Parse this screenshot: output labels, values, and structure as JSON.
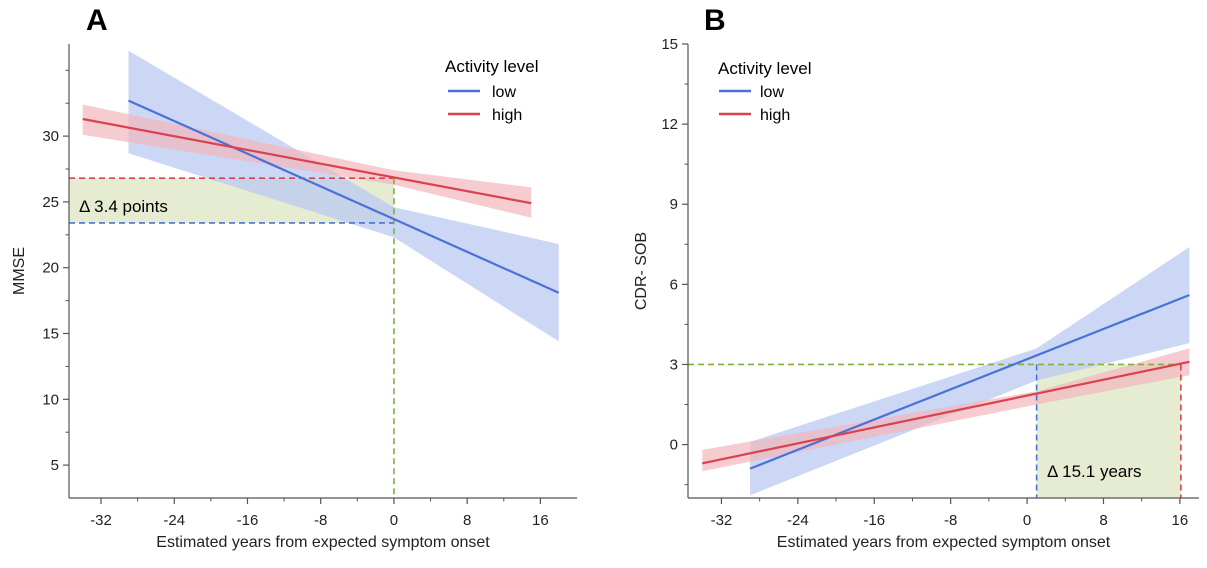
{
  "colors": {
    "low": "#4a72d6",
    "high": "#d9434f",
    "low_band": "#b8c7f2",
    "high_band": "#f2b6bc",
    "guide_green": "#7fb23a",
    "highlight_fill": "#e6ecd2"
  },
  "chart_data": [
    {
      "panel_label": "A",
      "type": "line",
      "xlabel": "Estimated years from expected symptom onset",
      "ylabel": "MMSE",
      "x_ticks": [
        -32,
        -24,
        -16,
        -8,
        0,
        8,
        16
      ],
      "y_ticks": [
        5,
        10,
        15,
        20,
        25,
        30
      ],
      "xlim": [
        -35.5,
        20
      ],
      "ylim": [
        2.5,
        37
      ],
      "legend": {
        "title": "Activity level",
        "position": "top-right"
      },
      "series": [
        {
          "name": "low",
          "color_key": "low",
          "x": [
            -29,
            18
          ],
          "y": [
            32.7,
            18.1
          ],
          "band": {
            "x": [
              -29,
              0,
              18
            ],
            "upper": [
              36.5,
              24.6,
              21.8
            ],
            "lower": [
              28.7,
              22.3,
              14.4
            ]
          }
        },
        {
          "name": "high",
          "color_key": "high",
          "x": [
            -34,
            15
          ],
          "y": [
            31.3,
            24.9
          ],
          "band": {
            "x": [
              -34,
              0,
              15
            ],
            "upper": [
              32.4,
              27.4,
              26.1
            ],
            "lower": [
              30.1,
              26.3,
              23.8
            ]
          }
        }
      ],
      "guides": {
        "h_high": 26.8,
        "h_low": 23.4,
        "v_x": 0
      },
      "annotation": "Δ 3.4 points"
    },
    {
      "panel_label": "B",
      "type": "line",
      "xlabel": "Estimated years from expected symptom onset",
      "ylabel": "CDR- SOB",
      "x_ticks": [
        -32,
        -24,
        -16,
        -8,
        0,
        8,
        16
      ],
      "y_ticks": [
        0,
        3,
        6,
        9,
        12,
        15
      ],
      "xlim": [
        -35.5,
        18
      ],
      "ylim": [
        -2,
        15
      ],
      "legend": {
        "title": "Activity level",
        "position": "top-left"
      },
      "series": [
        {
          "name": "low",
          "color_key": "low",
          "x": [
            -29,
            17
          ],
          "y": [
            -0.9,
            5.6
          ],
          "band": {
            "x": [
              -29,
              1,
              17
            ],
            "upper": [
              0.1,
              3.6,
              7.4
            ],
            "lower": [
              -1.9,
              2.4,
              3.8
            ]
          }
        },
        {
          "name": "high",
          "color_key": "high",
          "x": [
            -34,
            17
          ],
          "y": [
            -0.7,
            3.1
          ],
          "band": {
            "x": [
              -34,
              1,
              17
            ],
            "upper": [
              -0.2,
              2.0,
              3.6
            ],
            "lower": [
              -1.0,
              1.5,
              2.6
            ]
          }
        }
      ],
      "guides": {
        "h_y": 3,
        "v_low": 1.0,
        "v_high": 16.1
      },
      "annotation": "Δ 15.1 years"
    }
  ]
}
